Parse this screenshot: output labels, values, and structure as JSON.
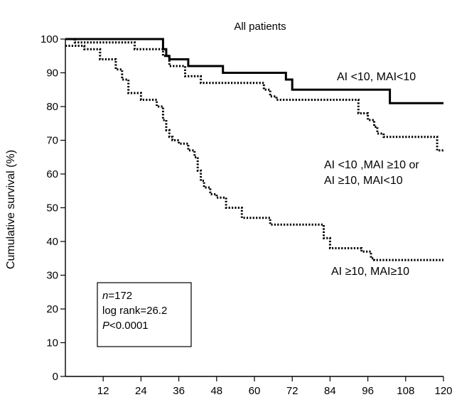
{
  "chart_data": {
    "type": "line",
    "title": "All patients",
    "xlabel": "",
    "ylabel": "Cumulative survival (%)",
    "xlim": [
      0,
      120
    ],
    "ylim": [
      0,
      100
    ],
    "xticks": [
      12,
      24,
      36,
      48,
      60,
      72,
      84,
      96,
      108,
      120
    ],
    "yticks": [
      0,
      10,
      20,
      30,
      40,
      50,
      60,
      70,
      80,
      90,
      100
    ],
    "grid": false,
    "series": [
      {
        "name": "AI <10, MAI<10",
        "style": "solid",
        "label_lines": [
          "AI <10, MAI<10"
        ],
        "x": [
          0,
          31,
          31,
          32,
          32,
          33,
          33,
          39,
          39,
          50,
          50,
          70,
          70,
          72,
          72,
          103,
          103,
          120
        ],
        "y": [
          100,
          100,
          97,
          97,
          95,
          95,
          94,
          94,
          92,
          92,
          90,
          90,
          88,
          88,
          85,
          85,
          81,
          81
        ]
      },
      {
        "name": "AI <10 ,MAI ≥10 or AI ≥10, MAI<10",
        "style": "dotted",
        "label_lines": [
          "AI <10 ,MAI ≥10 or",
          "AI ≥10, MAI<10"
        ],
        "x": [
          0,
          3,
          3,
          22,
          22,
          31,
          31,
          33,
          33,
          38,
          38,
          43,
          43,
          63,
          63,
          65,
          65,
          67,
          67,
          93,
          93,
          96,
          96,
          98,
          98,
          99,
          99,
          101,
          101,
          118,
          118,
          120
        ],
        "y": [
          100,
          100,
          99,
          99,
          97,
          97,
          95,
          95,
          92,
          92,
          89,
          89,
          87,
          87,
          85,
          85,
          83,
          83,
          82,
          82,
          78,
          78,
          76,
          76,
          74,
          74,
          72,
          72,
          71,
          71,
          67,
          67
        ]
      },
      {
        "name": "AI ≥10, MAI≥10",
        "style": "dotted",
        "label_lines": [
          "AI ≥10, MAI≥10"
        ],
        "x": [
          0,
          6,
          6,
          11,
          11,
          16,
          16,
          18,
          18,
          20,
          20,
          24,
          24,
          29,
          29,
          31,
          31,
          32,
          32,
          33,
          33,
          34,
          34,
          36,
          36,
          39,
          39,
          41,
          41,
          42,
          42,
          43,
          43,
          44,
          44,
          46,
          46,
          48,
          48,
          51,
          51,
          56,
          56,
          65,
          65,
          82,
          82,
          84,
          84,
          94,
          94,
          97,
          97,
          98,
          98,
          120
        ],
        "y": [
          98,
          98,
          97,
          97,
          94,
          94,
          91,
          91,
          88,
          88,
          84,
          84,
          82,
          82,
          80,
          80,
          76,
          76,
          73,
          73,
          71,
          71,
          70,
          70,
          69,
          69,
          67,
          67,
          65,
          65,
          61,
          61,
          58,
          58,
          56,
          56,
          54,
          54,
          53,
          53,
          50,
          50,
          47,
          47,
          45,
          45,
          41,
          41,
          38,
          38,
          37,
          37,
          35,
          35,
          34.5,
          34.5
        ]
      }
    ],
    "annotation_box": {
      "n_prefix": "n",
      "n_value": "=172",
      "log_rank": "log rank=26.2",
      "p_prefix": "P",
      "p_value": "<0.0001"
    }
  }
}
